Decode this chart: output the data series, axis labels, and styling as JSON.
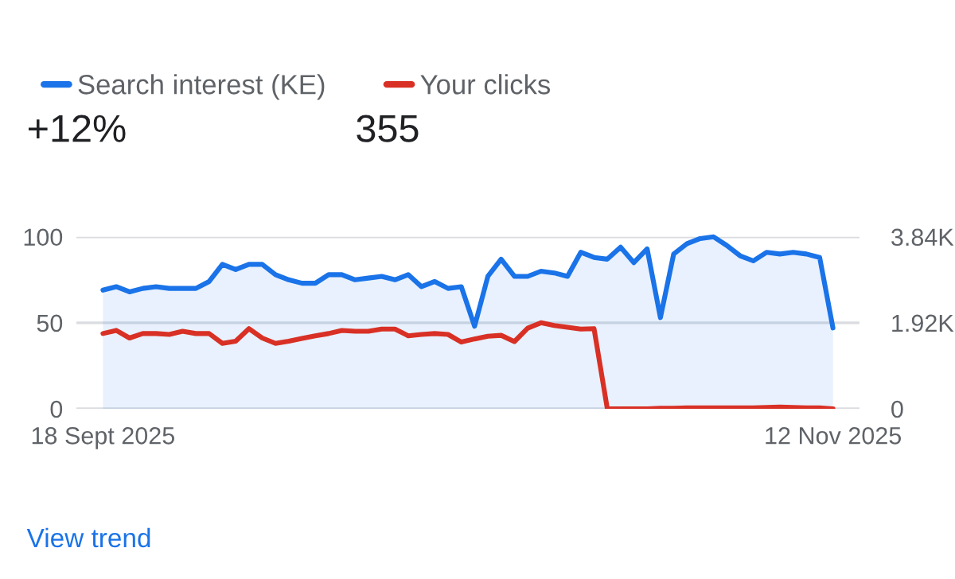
{
  "chart_data": {
    "type": "area",
    "x": [
      "2025-09-18",
      "2025-09-19",
      "2025-09-20",
      "2025-09-21",
      "2025-09-22",
      "2025-09-23",
      "2025-09-24",
      "2025-09-25",
      "2025-09-26",
      "2025-09-27",
      "2025-09-28",
      "2025-09-29",
      "2025-09-30",
      "2025-10-01",
      "2025-10-02",
      "2025-10-03",
      "2025-10-04",
      "2025-10-05",
      "2025-10-06",
      "2025-10-07",
      "2025-10-08",
      "2025-10-09",
      "2025-10-10",
      "2025-10-11",
      "2025-10-12",
      "2025-10-13",
      "2025-10-14",
      "2025-10-15",
      "2025-10-16",
      "2025-10-17",
      "2025-10-18",
      "2025-10-19",
      "2025-10-20",
      "2025-10-21",
      "2025-10-22",
      "2025-10-23",
      "2025-10-24",
      "2025-10-25",
      "2025-10-26",
      "2025-10-27",
      "2025-10-28",
      "2025-10-29",
      "2025-10-30",
      "2025-10-31",
      "2025-11-01",
      "2025-11-02",
      "2025-11-03",
      "2025-11-04",
      "2025-11-05",
      "2025-11-06",
      "2025-11-07",
      "2025-11-08",
      "2025-11-09",
      "2025-11-10",
      "2025-11-11",
      "2025-11-12"
    ],
    "series": [
      {
        "name": "Search interest (KE)",
        "color": "#1a73e8",
        "values": [
          69,
          71,
          68,
          70,
          71,
          70,
          70,
          70,
          74,
          84,
          81,
          84,
          84,
          78,
          75,
          73,
          73,
          78,
          78,
          75,
          76,
          77,
          75,
          78,
          71,
          74,
          70,
          71,
          48,
          77,
          87,
          77,
          77,
          80,
          79,
          77,
          91,
          88,
          87,
          94,
          85,
          93,
          53,
          90,
          96,
          99,
          100,
          95,
          89,
          86,
          91,
          90,
          91,
          90,
          88,
          47
        ]
      },
      {
        "name": "Your clicks",
        "color": "#d93025",
        "type": "line",
        "axis": "y2",
        "values": [
          1680,
          1750,
          1580,
          1680,
          1680,
          1660,
          1730,
          1680,
          1680,
          1460,
          1510,
          1790,
          1580,
          1460,
          1510,
          1570,
          1630,
          1680,
          1750,
          1730,
          1730,
          1780,
          1780,
          1630,
          1660,
          1680,
          1660,
          1490,
          1560,
          1620,
          1640,
          1500,
          1800,
          1920,
          1860,
          1820,
          1780,
          1790,
          0,
          0,
          0,
          0,
          10,
          10,
          20,
          20,
          20,
          20,
          20,
          20,
          30,
          40,
          30,
          20,
          20,
          0
        ]
      }
    ],
    "xlim": [
      "2025-09-16",
      "2025-11-14"
    ],
    "xticks": [
      {
        "value": "2025-09-18",
        "label": "18 Sept 2025"
      },
      {
        "value": "2025-11-12",
        "label": "12 Nov 2025"
      }
    ],
    "ylim": [
      0,
      100
    ],
    "yticks": [
      0,
      50,
      100
    ],
    "y2lim": [
      0,
      3840
    ],
    "y2ticks": [
      0,
      {
        "value": 1920,
        "label": "1.92K"
      },
      {
        "value": 3840,
        "label": "3.84K"
      }
    ],
    "grid": "y",
    "legend": "top left",
    "annotations": [
      "+12%",
      "355",
      "View trend"
    ]
  }
}
